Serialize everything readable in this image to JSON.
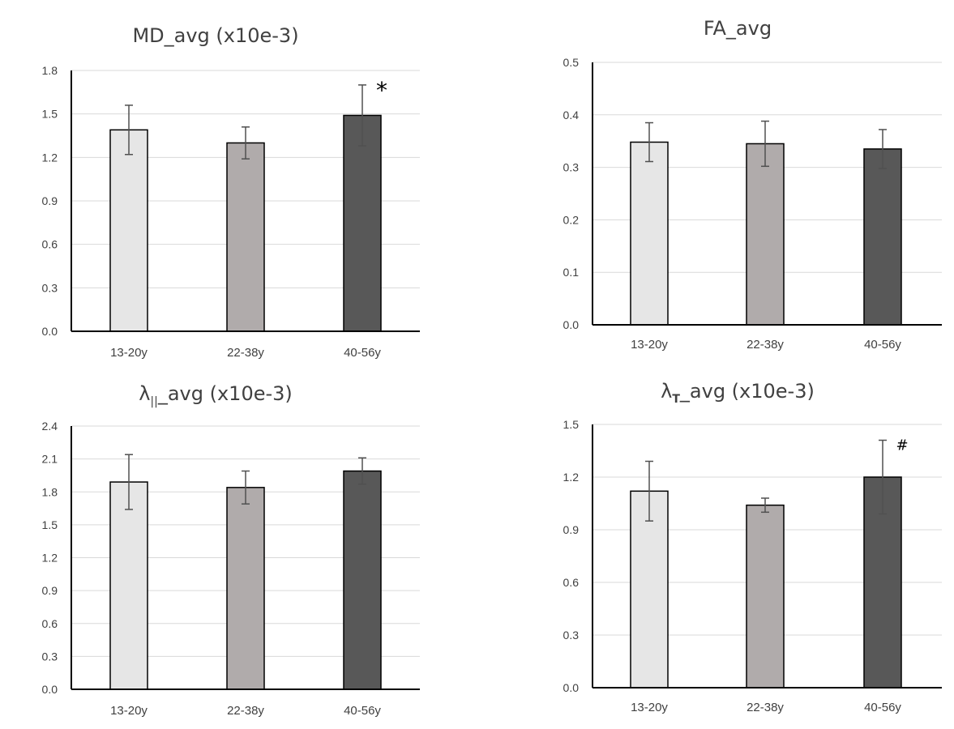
{
  "chart_data": [
    {
      "type": "bar",
      "title": "MD_avg (x10e-3)",
      "categories": [
        "13-20y",
        "22-38y",
        "40-56y"
      ],
      "values": [
        1.39,
        1.3,
        1.49
      ],
      "errors": [
        0.17,
        0.11,
        0.21
      ],
      "yticks": [
        "0.0",
        "0.3",
        "0.6",
        "0.9",
        "1.2",
        "1.5",
        "1.8"
      ],
      "ylim": [
        0,
        1.8
      ],
      "annotations": [
        {
          "category": "40-56y",
          "text": "*"
        }
      ],
      "grid": true
    },
    {
      "type": "bar",
      "title": "FA_avg",
      "categories": [
        "13-20y",
        "22-38y",
        "40-56y"
      ],
      "values": [
        0.348,
        0.345,
        0.335
      ],
      "errors": [
        0.037,
        0.043,
        0.037
      ],
      "yticks": [
        "0.0",
        "0.1",
        "0.2",
        "0.3",
        "0.4",
        "0.5"
      ],
      "ylim": [
        0,
        0.5
      ],
      "annotations": [],
      "grid": true
    },
    {
      "type": "bar",
      "title": "λ‖_avg (x10e-3)",
      "categories": [
        "13-20y",
        "22-38y",
        "40-56y"
      ],
      "values": [
        1.89,
        1.84,
        1.99
      ],
      "errors": [
        0.25,
        0.15,
        0.12
      ],
      "yticks": [
        "0.0",
        "0.3",
        "0.6",
        "0.9",
        "1.2",
        "1.5",
        "1.8",
        "2.1",
        "2.4"
      ],
      "ylim": [
        0,
        2.4
      ],
      "annotations": [],
      "grid": true
    },
    {
      "type": "bar",
      "title": "λT_avg (x10e-3)",
      "categories": [
        "13-20y",
        "22-38y",
        "40-56y"
      ],
      "values": [
        1.12,
        1.04,
        1.2
      ],
      "errors": [
        0.17,
        0.04,
        0.21
      ],
      "yticks": [
        "0.0",
        "0.3",
        "0.6",
        "0.9",
        "1.2",
        "1.5"
      ],
      "ylim": [
        0,
        1.5
      ],
      "annotations": [
        {
          "category": "40-56y",
          "text": "#"
        }
      ],
      "grid": true
    }
  ],
  "titles": {
    "c1": "MD_avg (x10e-3)",
    "c2": "FA_avg",
    "c3_lambda": "λ",
    "c3_sub": "||",
    "c3_rest": "_avg (x10e-3)",
    "c4_lambda": "λ",
    "c4_sub": "T",
    "c4_rest": "_avg (x10e-3)"
  },
  "colors": {
    "bar_13_20y": "#e6e6e6",
    "bar_22_38y": "#b0abab",
    "bar_40_56y": "#585858",
    "gridline": "#d9d9d9",
    "axis": "#000000",
    "text": "#404040"
  }
}
